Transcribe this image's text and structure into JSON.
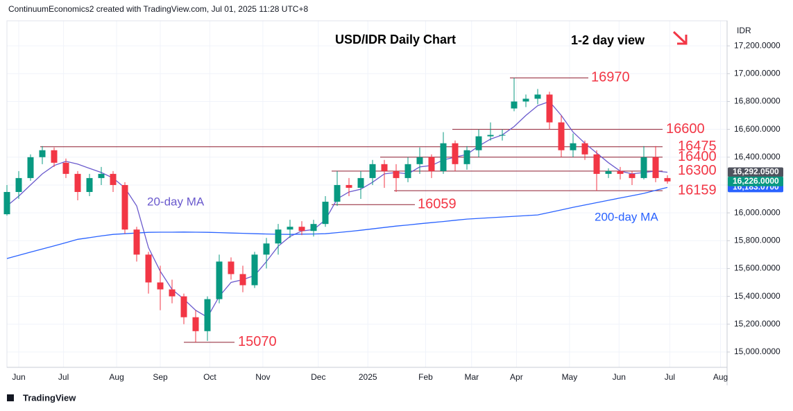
{
  "header": "ContinuumEconomics2 created with TradingView.com, Jul 01, 2025 11:28 UTC+8",
  "footer": "TradingView",
  "chart_data": {
    "type": "candlestick",
    "title": "USD/IDR Daily Chart",
    "subtitle": "1-2 day view",
    "y_axis_label": "IDR",
    "x": [
      0,
      1,
      2,
      3,
      4,
      5,
      6,
      7,
      8,
      9,
      10,
      11,
      12,
      13,
      14,
      15,
      16,
      17,
      18,
      19,
      20,
      21,
      22,
      23,
      24,
      25,
      26,
      27,
      28,
      29,
      30,
      31,
      32,
      33,
      34,
      35,
      36,
      37,
      38,
      39,
      40,
      41,
      42,
      43,
      44,
      45,
      46,
      47,
      48,
      49,
      50,
      51,
      52,
      53,
      54,
      55,
      56
    ],
    "open": [
      15990,
      16150,
      16250,
      16400,
      16450,
      16360,
      16280,
      16150,
      16250,
      16280,
      16200,
      15880,
      15700,
      15500,
      15450,
      15400,
      15250,
      15150,
      15380,
      15650,
      15560,
      15480,
      15700,
      15780,
      15880,
      15900,
      15870,
      15920,
      16080,
      16200,
      16180,
      16250,
      16350,
      16300,
      16250,
      16350,
      16400,
      16300,
      16500,
      16350,
      16450,
      16550,
      16560,
      16750,
      16800,
      16820,
      16850,
      16650,
      16450,
      16500,
      16420,
      16280,
      16300,
      16280,
      16250,
      16400,
      16250
    ],
    "high": [
      16200,
      16300,
      16420,
      16480,
      16470,
      16390,
      16300,
      16280,
      16330,
      16300,
      16220,
      15900,
      15720,
      15620,
      15520,
      15420,
      15300,
      15400,
      15700,
      15680,
      15620,
      15720,
      15820,
      15920,
      15950,
      15940,
      15950,
      16120,
      16300,
      16250,
      16300,
      16380,
      16380,
      16350,
      16400,
      16470,
      16420,
      16580,
      16520,
      16480,
      16600,
      16650,
      16600,
      16970,
      16850,
      16890,
      16870,
      16700,
      16570,
      16520,
      16450,
      16320,
      16330,
      16300,
      16480,
      16480,
      16270
    ],
    "low": [
      15980,
      16100,
      16230,
      16350,
      16330,
      16250,
      16090,
      16120,
      16200,
      16150,
      15850,
      15650,
      15420,
      15300,
      15350,
      15200,
      15070,
      15080,
      15350,
      15520,
      15430,
      15460,
      15600,
      15700,
      15820,
      15840,
      15830,
      15900,
      16050,
      16120,
      16100,
      16200,
      16180,
      16150,
      16220,
      16280,
      16250,
      16280,
      16300,
      16310,
      16400,
      16520,
      16520,
      16730,
      16760,
      16780,
      16600,
      16400,
      16400,
      16380,
      16159,
      16250,
      16240,
      16200,
      16240,
      16220,
      16210
    ],
    "close": [
      16150,
      16250,
      16400,
      16450,
      16360,
      16280,
      16150,
      16250,
      16280,
      16200,
      15880,
      15700,
      15500,
      15450,
      15400,
      15250,
      15150,
      15380,
      15650,
      15560,
      15480,
      15700,
      15780,
      15880,
      15900,
      15870,
      15920,
      16080,
      16200,
      16180,
      16250,
      16350,
      16300,
      16250,
      16350,
      16400,
      16300,
      16500,
      16350,
      16450,
      16550,
      16560,
      16560,
      16800,
      16820,
      16850,
      16650,
      16450,
      16500,
      16420,
      16280,
      16300,
      16280,
      16250,
      16400,
      16250,
      16226
    ],
    "up_color": "#089981",
    "down_color": "#f23645",
    "series": [
      {
        "name": "20-day MA",
        "color": "#6a5acd",
        "values": [
          16050,
          16120,
          16200,
          16280,
          16340,
          16370,
          16350,
          16320,
          16290,
          16250,
          16180,
          16050,
          15750,
          15580,
          15450,
          15380,
          15300,
          15250,
          15400,
          15500,
          15520,
          15550,
          15650,
          15760,
          15830,
          15870,
          15880,
          15950,
          16100,
          16150,
          16170,
          16220,
          16280,
          16290,
          16280,
          16330,
          16340,
          16380,
          16400,
          16420,
          16480,
          16530,
          16560,
          16620,
          16700,
          16770,
          16800,
          16700,
          16580,
          16500,
          16430,
          16360,
          16300,
          16280,
          16290,
          16300,
          16292
        ]
      },
      {
        "name": "200-day MA",
        "color": "#2962ff",
        "values": [
          15672,
          15695,
          15718,
          15740,
          15763,
          15786,
          15810,
          15822,
          15834,
          15845,
          15850,
          15855,
          15860,
          15861,
          15861,
          15862,
          15861,
          15860,
          15858,
          15855,
          15853,
          15850,
          15848,
          15846,
          15845,
          15847,
          15848,
          15850,
          15858,
          15866,
          15875,
          15885,
          15895,
          15905,
          15913,
          15922,
          15930,
          15938,
          15947,
          15955,
          15960,
          15965,
          15970,
          15975,
          15980,
          15985,
          16003,
          16021,
          16040,
          16057,
          16073,
          16090,
          16107,
          16123,
          16140,
          16162,
          16183
        ]
      }
    ],
    "levels": [
      16970,
      16600,
      16475,
      16400,
      16300,
      16159,
      16059,
      15070
    ],
    "level_color": "#8e1b2f",
    "level_label_color": "#f23645",
    "price_labels": [
      {
        "value": 16183.07,
        "label": "16,183.0700",
        "color": "#2962ff"
      },
      {
        "value": 16292.05,
        "label": "16,292.0500",
        "color": "#50535e"
      },
      {
        "value": 16226,
        "label": "16,226.0000",
        "color": "#089981"
      }
    ],
    "xlim": [
      0,
      61
    ],
    "ylim": [
      14890,
      17380
    ],
    "grid": true,
    "xticks": [
      {
        "value": 1.0,
        "label": "Jun"
      },
      {
        "value": 4.8,
        "label": "Jul"
      },
      {
        "value": 9.3,
        "label": "Aug"
      },
      {
        "value": 13.0,
        "label": "Sep"
      },
      {
        "value": 17.2,
        "label": "Oct"
      },
      {
        "value": 21.7,
        "label": "Nov"
      },
      {
        "value": 26.4,
        "label": "Dec"
      },
      {
        "value": 30.6,
        "label": "2025"
      },
      {
        "value": 35.5,
        "label": "Feb"
      },
      {
        "value": 39.4,
        "label": "Mar"
      },
      {
        "value": 43.2,
        "label": "Apr"
      },
      {
        "value": 47.7,
        "label": "May"
      },
      {
        "value": 51.9,
        "label": "Jun"
      },
      {
        "value": 56.2,
        "label": "Jul"
      },
      {
        "value": 60.5,
        "label": "Aug"
      }
    ],
    "yticks": [
      {
        "value": 15000,
        "label": "15,000.0000"
      },
      {
        "value": 15200,
        "label": "15,200.0000"
      },
      {
        "value": 15400,
        "label": "15,400.0000"
      },
      {
        "value": 15600,
        "label": "15,600.0000"
      },
      {
        "value": 15800,
        "label": "15,800.0000"
      },
      {
        "value": 16000,
        "label": "16,000.0000"
      },
      {
        "value": 16200,
        "label": "16,200.0000"
      },
      {
        "value": 16400,
        "label": "16,400.0000"
      },
      {
        "value": 16600,
        "label": "16,600.0000"
      },
      {
        "value": 16800,
        "label": "16,800.0000"
      },
      {
        "value": 17000,
        "label": "17,000.0000"
      },
      {
        "value": 17200,
        "label": "17,200.0000"
      }
    ]
  }
}
